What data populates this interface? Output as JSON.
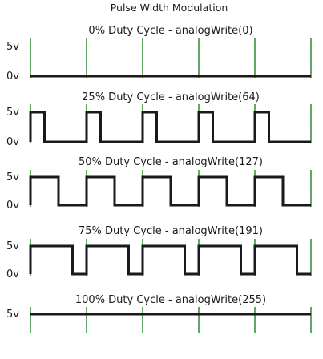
{
  "title": "Pulse Width Modulation",
  "high_label": "5v",
  "low_label": "0v",
  "colors": {
    "signal": "#1a1a1a",
    "period_marker": "#2e8b2e",
    "background": "#ffffff"
  },
  "periods_shown": 5,
  "panels": [
    {
      "caption": "0% Duty Cycle - analogWrite(0)",
      "duty_cycle_percent": 0
    },
    {
      "caption": "25% Duty Cycle - analogWrite(64)",
      "duty_cycle_percent": 25
    },
    {
      "caption": "50% Duty Cycle - analogWrite(127)",
      "duty_cycle_percent": 50
    },
    {
      "caption": "75% Duty Cycle - analogWrite(191)",
      "duty_cycle_percent": 75
    },
    {
      "caption": "100% Duty Cycle - analogWrite(255)",
      "duty_cycle_percent": 100
    }
  ]
}
